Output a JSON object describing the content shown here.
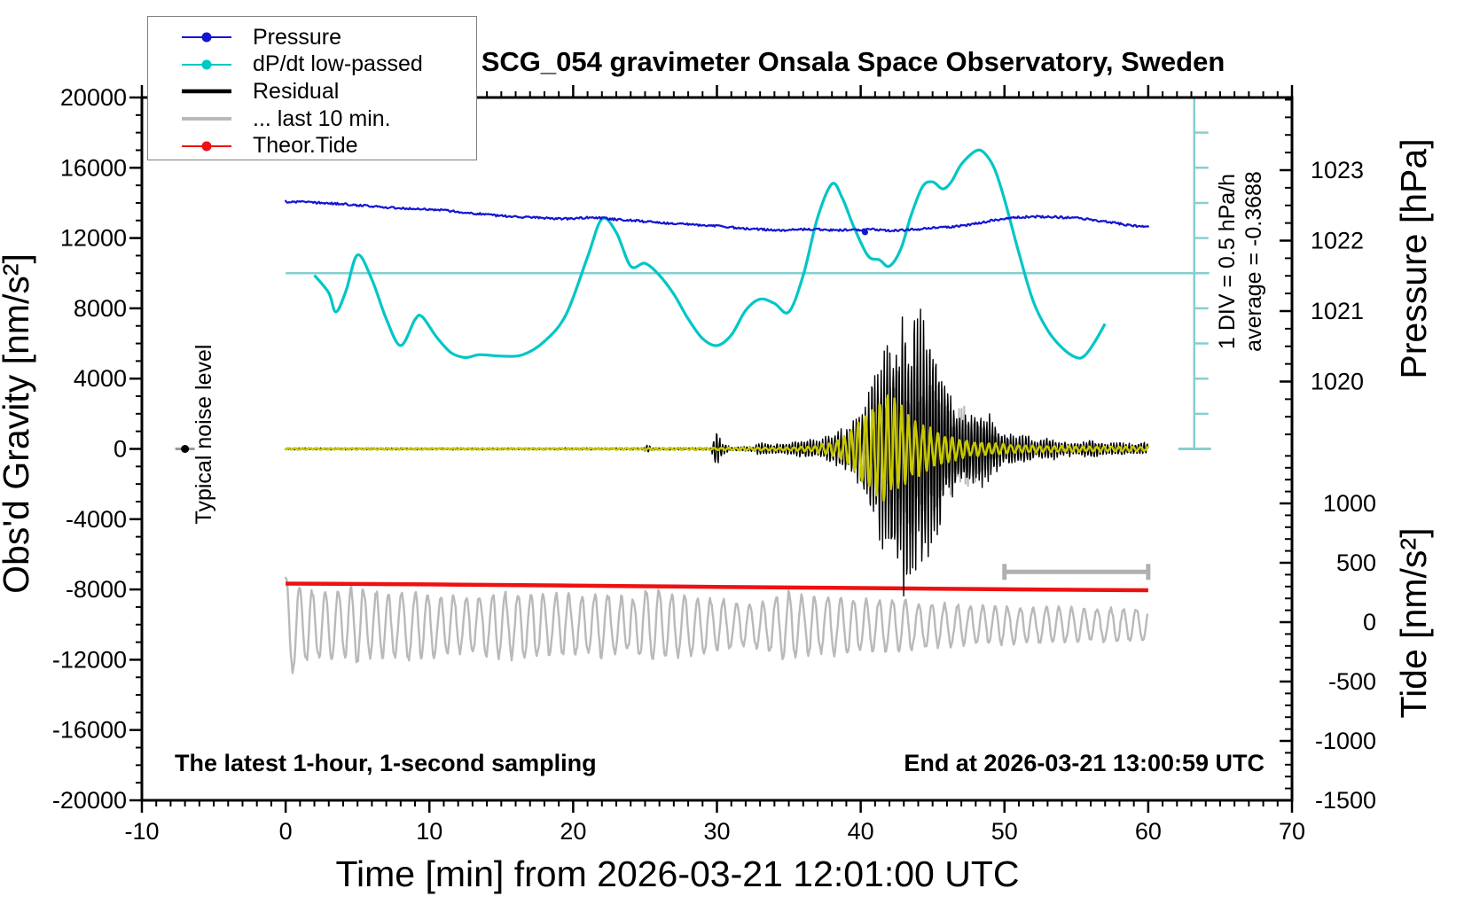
{
  "title": "SCG_054 gravimeter Onsala Space Observatory, Sweden",
  "colors": {
    "pressure": "#1414d2",
    "dpdt": "#00c6c6",
    "dpdt_ruler": "#86cfcf",
    "residual": "#000000",
    "gray_trace": "#b9b9b9",
    "theor_tide": "#ee1111",
    "residual_lowpassed": "#c8c800",
    "scale_bar": "#b0b0b0",
    "axis": "#000000"
  },
  "legend": {
    "items": [
      {
        "label": "Pressure",
        "color": "#1414d2",
        "marker": "circle",
        "line_width": 2
      },
      {
        "label": "dP/dt low-passed",
        "color": "#00c6c6",
        "marker": "circle",
        "line_width": 2
      },
      {
        "label": "Residual",
        "color": "#000000",
        "marker": "none",
        "line_width": 4.5
      },
      {
        "label": "... last 10 min.",
        "color": "#b9b9b9",
        "marker": "none",
        "line_width": 4
      },
      {
        "label": "Theor.Tide",
        "color": "#ee1111",
        "marker": "circle",
        "line_width": 2
      }
    ]
  },
  "annotations": {
    "noise_label": "Typical noise level",
    "div_label": "1 DIV = 0.5 hPa/h",
    "average_label": "average = -0.3688",
    "sampling_label": "The latest 1-hour, 1-second sampling",
    "end_label": "End at 2026-03-21 13:00:59 UTC"
  },
  "chart_data": {
    "type": "line",
    "title": "SCG_054 gravimeter Onsala Space Observatory, Sweden",
    "x_axis": {
      "label": "Time [min] from 2026-03-21 12:01:00 UTC",
      "range": [
        -10,
        70
      ],
      "major_ticks": [
        -10,
        0,
        10,
        20,
        30,
        40,
        50,
        60,
        70
      ],
      "minor_step": 1
    },
    "y_axis_gravity": {
      "label": "Obs'd Gravity [nm/s²]",
      "range": [
        -20000,
        20000
      ],
      "major_ticks": [
        -20000,
        -16000,
        -12000,
        -8000,
        -4000,
        0,
        4000,
        8000,
        12000,
        16000,
        20000
      ],
      "minor_step": 1000
    },
    "y_axis_pressure": {
      "label": "Pressure [hPa]",
      "major_ticks": [
        1020,
        1021,
        1022,
        1023
      ],
      "minor_step": 0.25,
      "minor_range": [
        1019.25,
        1024
      ]
    },
    "y_axis_tide": {
      "label": "Tide [nm/s²]",
      "major_ticks": [
        -1500,
        -1000,
        -500,
        0,
        500,
        1000
      ],
      "minor_step": 100,
      "minor_range": [
        -1500,
        1400
      ]
    },
    "dpdt_scale": {
      "zero_at_gravity": 10000,
      "gravity_units_per_div": 2000,
      "ruler_time_min": 63.2,
      "div_label": "1 DIV = 0.5 hPa/h",
      "average": -0.3688
    },
    "noise_marker": {
      "time_min": -7,
      "gravity": 0,
      "label": "Typical noise level"
    },
    "scale_bar": {
      "from_min": 50,
      "to_min": 60,
      "gravity": -7000
    },
    "series": [
      {
        "name": "Pressure",
        "axis": "pressure",
        "unit": "hPa",
        "color": "#1414d2",
        "style": "noisy-line",
        "outlier_point": [
          40.3,
          1022.12
        ],
        "points": [
          [
            0,
            1022.55
          ],
          [
            1,
            1022.55
          ],
          [
            2,
            1022.54
          ],
          [
            3,
            1022.53
          ],
          [
            4,
            1022.52
          ],
          [
            5,
            1022.5
          ],
          [
            6,
            1022.49
          ],
          [
            7,
            1022.47
          ],
          [
            8,
            1022.46
          ],
          [
            9,
            1022.45
          ],
          [
            10,
            1022.44
          ],
          [
            11,
            1022.43
          ],
          [
            12,
            1022.41
          ],
          [
            13,
            1022.39
          ],
          [
            14,
            1022.37
          ],
          [
            15,
            1022.35
          ],
          [
            16,
            1022.34
          ],
          [
            17,
            1022.33
          ],
          [
            18,
            1022.32
          ],
          [
            19,
            1022.31
          ],
          [
            20,
            1022.31
          ],
          [
            21,
            1022.33
          ],
          [
            22,
            1022.32
          ],
          [
            23,
            1022.3
          ],
          [
            24,
            1022.29
          ],
          [
            25,
            1022.27
          ],
          [
            26,
            1022.26
          ],
          [
            27,
            1022.24
          ],
          [
            28,
            1022.23
          ],
          [
            29,
            1022.22
          ],
          [
            30,
            1022.21
          ],
          [
            31,
            1022.19
          ],
          [
            32,
            1022.17
          ],
          [
            33,
            1022.16
          ],
          [
            34,
            1022.15
          ],
          [
            35,
            1022.15
          ],
          [
            36,
            1022.16
          ],
          [
            37,
            1022.16
          ],
          [
            38,
            1022.15
          ],
          [
            39,
            1022.15
          ],
          [
            40,
            1022.15
          ],
          [
            41,
            1022.16
          ],
          [
            42,
            1022.14
          ],
          [
            43,
            1022.15
          ],
          [
            44,
            1022.16
          ],
          [
            45,
            1022.18
          ],
          [
            46,
            1022.19
          ],
          [
            47,
            1022.21
          ],
          [
            48,
            1022.24
          ],
          [
            49,
            1022.28
          ],
          [
            50,
            1022.31
          ],
          [
            51,
            1022.33
          ],
          [
            52,
            1022.34
          ],
          [
            53,
            1022.34
          ],
          [
            54,
            1022.33
          ],
          [
            55,
            1022.32
          ],
          [
            56,
            1022.3
          ],
          [
            57,
            1022.27
          ],
          [
            58,
            1022.24
          ],
          [
            59,
            1022.21
          ],
          [
            60,
            1022.19
          ]
        ]
      },
      {
        "name": "dP/dt low-passed",
        "axis": "dpdt",
        "unit": "hPa/h",
        "color": "#00c6c6",
        "style": "smooth-line",
        "points": [
          [
            2,
            -0.03
          ],
          [
            3,
            -0.28
          ],
          [
            3.5,
            -0.55
          ],
          [
            4.2,
            -0.25
          ],
          [
            5,
            0.26
          ],
          [
            6,
            -0.09
          ],
          [
            7,
            -0.65
          ],
          [
            8,
            -1.03
          ],
          [
            9,
            -0.66
          ],
          [
            9.5,
            -0.62
          ],
          [
            10.5,
            -0.91
          ],
          [
            11.5,
            -1.13
          ],
          [
            12.5,
            -1.2
          ],
          [
            13.5,
            -1.16
          ],
          [
            15,
            -1.18
          ],
          [
            16.5,
            -1.16
          ],
          [
            18,
            -0.97
          ],
          [
            19.5,
            -0.59
          ],
          [
            21,
            0.23
          ],
          [
            22,
            0.77
          ],
          [
            23,
            0.58
          ],
          [
            24,
            0.1
          ],
          [
            25,
            0.14
          ],
          [
            26,
            -0.03
          ],
          [
            27,
            -0.3
          ],
          [
            28,
            -0.65
          ],
          [
            29,
            -0.93
          ],
          [
            30,
            -1.03
          ],
          [
            31,
            -0.88
          ],
          [
            32,
            -0.53
          ],
          [
            33,
            -0.37
          ],
          [
            34,
            -0.43
          ],
          [
            35,
            -0.55
          ],
          [
            36,
            -0.03
          ],
          [
            37,
            0.79
          ],
          [
            38,
            1.27
          ],
          [
            38.7,
            1.08
          ],
          [
            39.5,
            0.67
          ],
          [
            40.5,
            0.25
          ],
          [
            41.3,
            0.19
          ],
          [
            42,
            0.1
          ],
          [
            42.8,
            0.35
          ],
          [
            43.5,
            0.82
          ],
          [
            44.3,
            1.23
          ],
          [
            45,
            1.3
          ],
          [
            45.7,
            1.2
          ],
          [
            46.3,
            1.3
          ],
          [
            47,
            1.55
          ],
          [
            48,
            1.74
          ],
          [
            48.6,
            1.71
          ],
          [
            49.3,
            1.49
          ],
          [
            50,
            1.05
          ],
          [
            51,
            0.29
          ],
          [
            52,
            -0.4
          ],
          [
            53,
            -0.81
          ],
          [
            54,
            -1.06
          ],
          [
            55,
            -1.2
          ],
          [
            55.6,
            -1.17
          ],
          [
            56.3,
            -0.97
          ],
          [
            57,
            -0.72
          ]
        ]
      },
      {
        "name": "Residual",
        "axis": "gravity",
        "unit": "nm/s²",
        "color": "#000000",
        "style": "seismic",
        "baseline": 0,
        "cycle_min": 0.21,
        "envelope": [
          [
            0,
            60
          ],
          [
            24.9,
            60
          ],
          [
            25.2,
            300
          ],
          [
            25.5,
            65
          ],
          [
            29.6,
            70
          ],
          [
            29.9,
            1100
          ],
          [
            30.4,
            350
          ],
          [
            31,
            110
          ],
          [
            32.5,
            150
          ],
          [
            33,
            450
          ],
          [
            34,
            280
          ],
          [
            35,
            350
          ],
          [
            36,
            500
          ],
          [
            36.5,
            700
          ],
          [
            37,
            450
          ],
          [
            37.7,
            800
          ],
          [
            38.5,
            1100
          ],
          [
            39.3,
            1500
          ],
          [
            40,
            2200
          ],
          [
            40.7,
            4000
          ],
          [
            41.5,
            6200
          ],
          [
            42.4,
            7600
          ],
          [
            43.2,
            8100
          ],
          [
            44,
            8300
          ],
          [
            44.8,
            7000
          ],
          [
            45.5,
            5000
          ],
          [
            46.2,
            3200
          ],
          [
            46.8,
            2200
          ],
          [
            47.4,
            2400
          ],
          [
            48,
            1700
          ],
          [
            48.7,
            2400
          ],
          [
            49.3,
            1600
          ],
          [
            50,
            1000
          ],
          [
            50.8,
            800
          ],
          [
            51.5,
            900
          ],
          [
            52.3,
            550
          ],
          [
            53.2,
            700
          ],
          [
            54,
            450
          ],
          [
            55,
            420
          ],
          [
            56,
            550
          ],
          [
            57,
            380
          ],
          [
            58,
            400
          ],
          [
            59,
            340
          ],
          [
            60,
            400
          ]
        ]
      },
      {
        "name": "Residual coda underlay",
        "axis": "gravity",
        "color": "#b9b9b9",
        "style": "seismic",
        "cycle_min": 0.17,
        "envelope": [
          [
            40,
            0
          ],
          [
            41,
            1500
          ],
          [
            42,
            3500
          ],
          [
            43,
            5200
          ],
          [
            44,
            5800
          ],
          [
            44.8,
            5000
          ],
          [
            45.6,
            3600
          ],
          [
            46.4,
            2600
          ],
          [
            47.2,
            2800
          ],
          [
            48,
            1800
          ],
          [
            48.8,
            1200
          ],
          [
            49.6,
            600
          ],
          [
            50.2,
            0
          ]
        ]
      },
      {
        "name": "Residual low-passed",
        "axis": "gravity",
        "color": "#c8c800",
        "style": "seismic-smooth",
        "cycle_min": 0.5,
        "envelope": [
          [
            0,
            45
          ],
          [
            20,
            45
          ],
          [
            30,
            70
          ],
          [
            35,
            90
          ],
          [
            36.5,
            150
          ],
          [
            37.5,
            300
          ],
          [
            38.3,
            500
          ],
          [
            39,
            900
          ],
          [
            39.8,
            1700
          ],
          [
            40.6,
            2600
          ],
          [
            41.6,
            3400
          ],
          [
            42.4,
            2900
          ],
          [
            43.2,
            2200
          ],
          [
            44,
            1600
          ],
          [
            45,
            1100
          ],
          [
            46,
            800
          ],
          [
            47,
            560
          ],
          [
            48,
            420
          ],
          [
            50,
            280
          ],
          [
            52,
            200
          ],
          [
            55,
            160
          ],
          [
            60,
            130
          ]
        ]
      },
      {
        "name": "... last 10 min.",
        "axis": "tide",
        "color": "#b9b9b9",
        "style": "oscillation",
        "center": -25,
        "cycle_min": 0.9,
        "envelope": [
          [
            0,
            430
          ],
          [
            1,
            370
          ],
          [
            2,
            300
          ],
          [
            3,
            330
          ],
          [
            4,
            300
          ],
          [
            5,
            330
          ],
          [
            6,
            285
          ],
          [
            8,
            305
          ],
          [
            10,
            280
          ],
          [
            12,
            245
          ],
          [
            14,
            265
          ],
          [
            16,
            300
          ],
          [
            18,
            280
          ],
          [
            20,
            255
          ],
          [
            22,
            285
          ],
          [
            24,
            235
          ],
          [
            25,
            300
          ],
          [
            26,
            320
          ],
          [
            27,
            285
          ],
          [
            28,
            262
          ],
          [
            30,
            232
          ],
          [
            32,
            185
          ],
          [
            33,
            205
          ],
          [
            34,
            262
          ],
          [
            35,
            300
          ],
          [
            36,
            280
          ],
          [
            37,
            245
          ],
          [
            38,
            262
          ],
          [
            40,
            225
          ],
          [
            42,
            232
          ],
          [
            44,
            205
          ],
          [
            46,
            185
          ],
          [
            48,
            172
          ],
          [
            50,
            162
          ],
          [
            52,
            152
          ],
          [
            54,
            162
          ],
          [
            56,
            142
          ],
          [
            58,
            152
          ],
          [
            60,
            135
          ]
        ]
      },
      {
        "name": "Theor.Tide",
        "axis": "tide",
        "unit": "nm/s²",
        "color": "#ee1111",
        "style": "line",
        "points": [
          [
            0,
            325
          ],
          [
            10,
            318
          ],
          [
            20,
            308
          ],
          [
            30,
            297
          ],
          [
            40,
            287
          ],
          [
            50,
            277
          ],
          [
            60,
            269
          ]
        ]
      }
    ]
  }
}
